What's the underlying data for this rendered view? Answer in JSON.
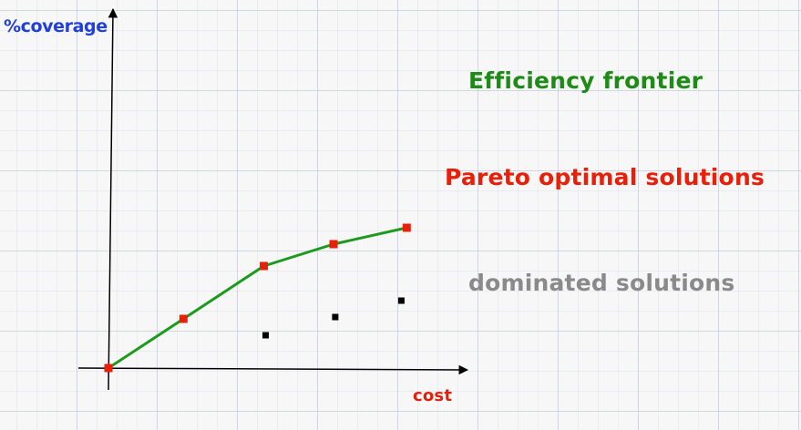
{
  "chart_data": {
    "type": "scatter",
    "xlabel": "cost",
    "ylabel": "%coverage",
    "grid": true,
    "xlim": [
      0,
      10
    ],
    "ylim": [
      0,
      10
    ],
    "series": [
      {
        "name": "Efficiency frontier",
        "kind": "line",
        "color": "#1b9a1b",
        "x": [
          0,
          2.1,
          4.35,
          6.3,
          8.35
        ],
        "y": [
          0,
          1.35,
          2.8,
          3.4,
          3.85
        ]
      },
      {
        "name": "Pareto optimal solutions",
        "kind": "points",
        "color": "#e8200a",
        "x": [
          0,
          2.1,
          4.35,
          6.3,
          8.35
        ],
        "y": [
          0,
          1.35,
          2.8,
          3.4,
          3.85
        ]
      },
      {
        "name": "dominated solutions",
        "kind": "points",
        "color": "#000000",
        "x": [
          4.4,
          6.35,
          8.2
        ],
        "y": [
          0.9,
          1.4,
          1.85
        ]
      }
    ]
  }
}
